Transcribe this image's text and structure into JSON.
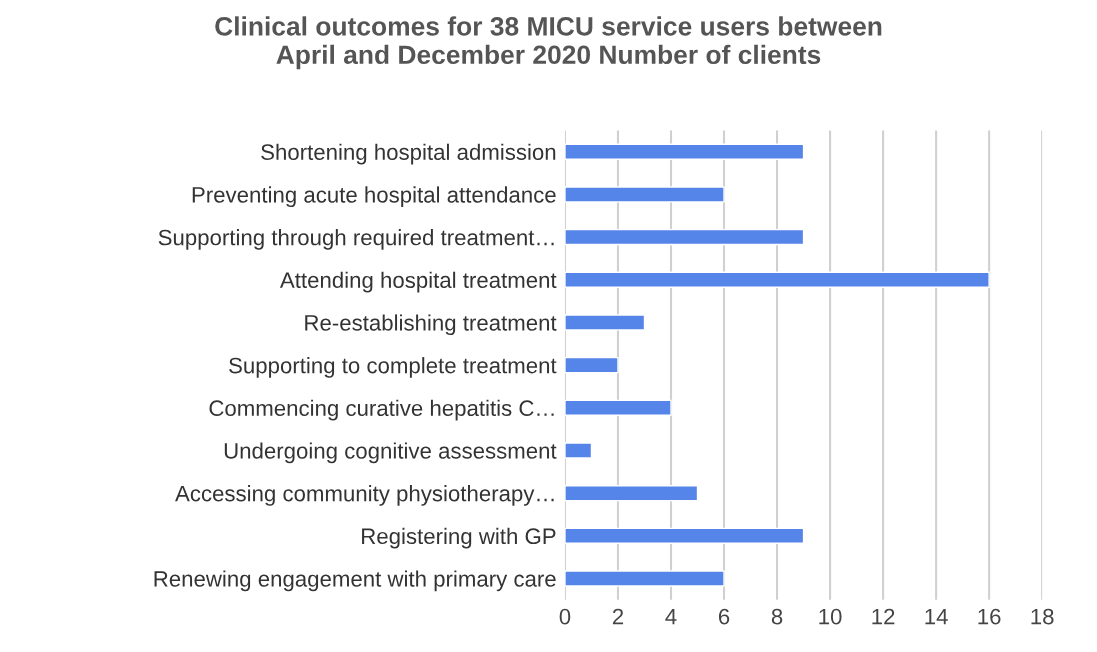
{
  "chart_data": {
    "type": "bar",
    "orientation": "horizontal",
    "title": "Clinical outcomes for 38 MICU service users between\nApril and December 2020 Number of clients",
    "categories": [
      "Shortening hospital admission",
      "Preventing acute hospital attendance",
      "Supporting through required treatment…",
      "Attending hospital treatment",
      "Re-establishing treatment",
      "Supporting to complete treatment",
      "Commencing curative hepatitis C…",
      "Undergoing cognitive assessment",
      "Accessing community physiotherapy…",
      "Registering with GP",
      "Renewing engagement with primary care"
    ],
    "values": [
      9,
      6,
      9,
      16,
      3,
      2,
      4,
      1,
      5,
      9,
      6
    ],
    "color": "#5585e8",
    "xlim": [
      0,
      18
    ],
    "xticks": [
      0,
      2,
      4,
      6,
      8,
      10,
      12,
      14,
      16,
      18
    ],
    "grid": "x"
  }
}
